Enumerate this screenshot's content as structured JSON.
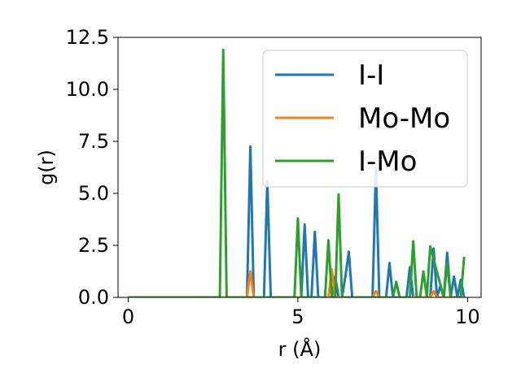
{
  "chart_data": {
    "type": "line",
    "xlabel": "r (Å)",
    "ylabel": "g(r)",
    "xlim": [
      -0.3,
      10.4
    ],
    "ylim": [
      0,
      12.5
    ],
    "xticks": [
      0,
      5,
      10
    ],
    "xtick_labels": [
      "0",
      "5",
      "10"
    ],
    "yticks": [
      0,
      2.5,
      5.0,
      7.5,
      10.0,
      12.5
    ],
    "ytick_labels": [
      "0.0",
      "2.5",
      "5.0",
      "7.5",
      "10.0",
      "12.5"
    ],
    "grid": false,
    "legend_position": "top-right",
    "series": [
      {
        "name": "I-I",
        "color": "#1f77b4",
        "x": [
          0,
          3.5,
          3.6,
          3.7,
          4.0,
          4.1,
          4.2,
          5.1,
          5.2,
          5.3,
          5.4,
          5.5,
          5.6,
          6.0,
          6.1,
          6.2,
          6.3,
          6.4,
          6.5,
          6.6,
          7.2,
          7.3,
          7.4,
          7.6,
          7.7,
          7.8,
          8.2,
          8.3,
          8.4,
          8.5,
          8.9,
          9.0,
          9.1,
          9.2,
          9.3,
          9.4,
          9.5,
          9.6,
          9.7,
          9.8,
          9.9
        ],
        "y": [
          0,
          0,
          7.25,
          0,
          0,
          5.6,
          0,
          0,
          3.5,
          0,
          0,
          3.15,
          0,
          0,
          1.0,
          0,
          0,
          1.0,
          2.2,
          0,
          0,
          6.2,
          0,
          0,
          1.65,
          0,
          0,
          1.45,
          0,
          0,
          0,
          2.35,
          0,
          0.55,
          0,
          2.15,
          0,
          1.0,
          0,
          0.85,
          0
        ]
      },
      {
        "name": "Mo-Mo",
        "color": "#ff7f0e",
        "x": [
          0,
          3.5,
          3.6,
          3.7,
          5.9,
          6.0,
          6.1,
          7.2,
          7.3,
          7.4,
          7.8,
          7.9,
          8.0,
          8.9,
          9.0,
          9.1,
          9.9
        ],
        "y": [
          0,
          0,
          1.25,
          0,
          0,
          1.35,
          0,
          0,
          0.3,
          0,
          0,
          0.7,
          0,
          0,
          0.3,
          0,
          0
        ]
      },
      {
        "name": "I-Mo",
        "color": "#2ca02c",
        "x": [
          0,
          2.7,
          2.8,
          2.9,
          4.9,
          5.0,
          5.1,
          5.8,
          5.9,
          6.0,
          6.1,
          6.2,
          6.3,
          7.8,
          7.9,
          8.0,
          8.3,
          8.4,
          8.5,
          8.6,
          8.7,
          8.8,
          8.9,
          9.3,
          9.4,
          9.5,
          9.8,
          9.9
        ],
        "y": [
          0,
          0,
          11.9,
          0,
          0,
          3.8,
          0,
          0,
          2.75,
          0,
          0,
          4.95,
          0,
          0,
          0.75,
          0,
          0,
          2.7,
          0,
          0,
          1.25,
          0,
          2.45,
          0,
          1.65,
          0,
          0,
          1.95
        ]
      }
    ]
  }
}
